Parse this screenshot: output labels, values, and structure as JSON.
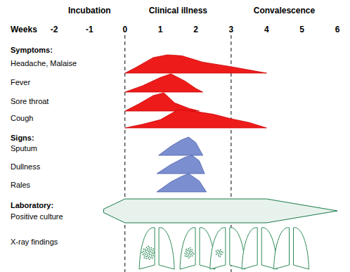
{
  "chart_data": {
    "type": "area",
    "x_label": "Weeks",
    "xlim": [
      -2,
      6
    ],
    "xticks": [
      -2,
      -1,
      0,
      1,
      2,
      3,
      4,
      5,
      6
    ],
    "ylim": [
      0,
      1
    ],
    "tick_labels": "x",
    "phases": [
      {
        "label": "Incubation",
        "start": -2,
        "end": 0
      },
      {
        "label": "Clinical illness",
        "start": 0,
        "end": 3
      },
      {
        "label": "Convalescence",
        "start": 3,
        "end": 6
      }
    ],
    "groups": [
      {
        "title": "Symptoms:",
        "color": "#ee1b1b",
        "series": [
          {
            "name": "Headache, Malaise",
            "x": [
              0,
              0.3,
              0.8,
              1.2,
              1.6,
              2.2,
              3,
              4
            ],
            "values": [
              0,
              0.3,
              0.85,
              1,
              0.95,
              0.6,
              0.35,
              0
            ]
          },
          {
            "name": "Fever",
            "x": [
              0,
              0.5,
              1,
              1.3,
              1.7,
              2,
              2.2
            ],
            "values": [
              0,
              0.35,
              0.8,
              1,
              0.6,
              0.2,
              0
            ]
          },
          {
            "name": "Sore throat",
            "x": [
              0,
              0.4,
              0.8,
              1.1,
              1.4,
              1.8,
              2.1
            ],
            "values": [
              0,
              0.4,
              0.85,
              1,
              0.45,
              0.15,
              0
            ]
          },
          {
            "name": "Cough",
            "x": [
              0,
              0.5,
              1,
              1.5,
              2,
              2.5,
              3,
              3.5,
              4
            ],
            "values": [
              0,
              0.2,
              0.45,
              1,
              0.9,
              0.75,
              0.5,
              0.3,
              0
            ]
          }
        ]
      },
      {
        "title": "Signs:",
        "color": "#7b8fd0",
        "series": [
          {
            "name": "Sputum",
            "x": [
              0.95,
              1.3,
              1.6,
              1.8,
              2,
              2.2
            ],
            "values": [
              0,
              0.5,
              0.85,
              1,
              0.7,
              0
            ]
          },
          {
            "name": "Dullness",
            "x": [
              0.9,
              1.3,
              1.7,
              1.9,
              2.1,
              2.25
            ],
            "values": [
              0,
              0.5,
              0.9,
              1,
              0.7,
              0
            ]
          },
          {
            "name": "Rales",
            "x": [
              0.9,
              1.3,
              1.6,
              1.8,
              2.1,
              2.3
            ],
            "values": [
              0,
              0.55,
              0.85,
              1,
              0.6,
              0
            ]
          }
        ]
      }
    ],
    "laboratory": {
      "title": "Laboratory:",
      "name": "Positive culture",
      "color": "#e8f2ec",
      "x": [
        -0.6,
        0,
        4,
        6
      ],
      "values": [
        0.15,
        1,
        1,
        0
      ]
    },
    "xray": {
      "name": "X-ray findings",
      "color": "#2e8b57",
      "x": [
        0.9,
        2.05,
        2.9,
        3.8,
        4.7
      ],
      "values": [
        1,
        0.6,
        0.35,
        0,
        0
      ]
    }
  }
}
